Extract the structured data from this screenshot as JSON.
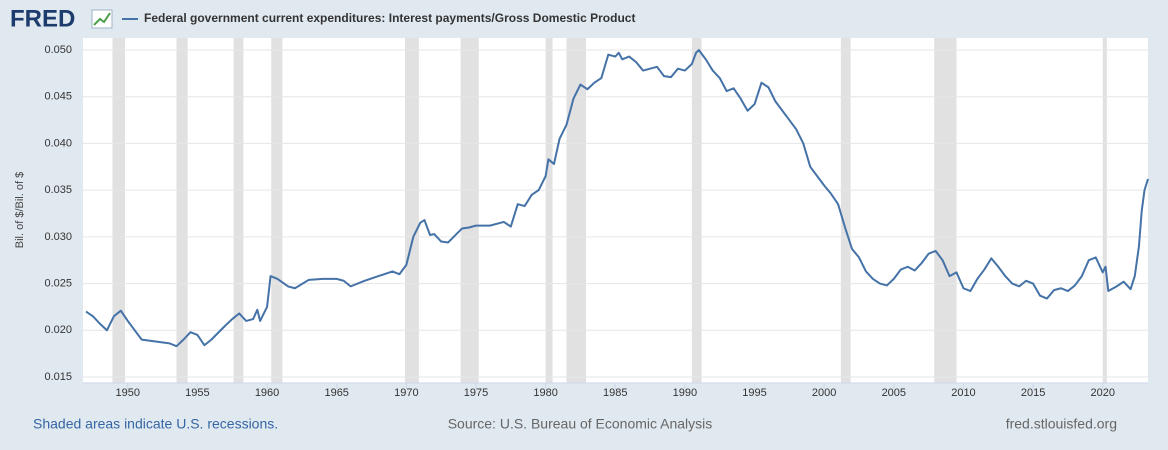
{
  "logo": "FRED",
  "chart_data": {
    "type": "line",
    "y_label": "Bil. of $/Bil. of $",
    "x": [
      1947,
      1947.5,
      1948,
      1948.5,
      1949,
      1949.5,
      1950,
      1950.5,
      1951,
      1952,
      1953,
      1953.5,
      1954,
      1954.5,
      1955,
      1955.5,
      1956,
      1957,
      1957.5,
      1958,
      1958.5,
      1959,
      1959.3,
      1959.5,
      1960,
      1960.25,
      1960.75,
      1961.5,
      1962,
      1963,
      1964,
      1965,
      1965.5,
      1966,
      1967,
      1968,
      1969,
      1969.5,
      1970,
      1970.5,
      1971,
      1971.3,
      1971.7,
      1972,
      1972.5,
      1973,
      1974,
      1974.5,
      1975,
      1976,
      1977,
      1977.5,
      1978,
      1978.5,
      1979,
      1979.5,
      1980,
      1980.2,
      1980.6,
      1981,
      1981.5,
      1982,
      1982.5,
      1983,
      1983.5,
      1984,
      1984.5,
      1985,
      1985.25,
      1985.5,
      1986,
      1986.5,
      1987,
      1988,
      1988.5,
      1989,
      1989.5,
      1990,
      1990.5,
      1990.8,
      1991,
      1991.5,
      1992,
      1992.5,
      1993,
      1993.5,
      1994,
      1994.5,
      1995,
      1995.5,
      1996,
      1996.5,
      1997,
      1997.5,
      1998,
      1998.5,
      1999,
      1999.5,
      2000,
      2000.5,
      2001,
      2001.5,
      2002,
      2002.5,
      2003,
      2003.5,
      2004,
      2004.5,
      2005,
      2005.5,
      2006,
      2006.5,
      2007,
      2007.5,
      2008,
      2008.5,
      2009,
      2009.5,
      2010,
      2010.5,
      2011,
      2011.5,
      2012,
      2012.5,
      2013,
      2013.5,
      2014,
      2014.5,
      2015,
      2015.5,
      2016,
      2016.5,
      2017,
      2017.5,
      2018,
      2018.5,
      2019,
      2019.5,
      2020,
      2020.2,
      2020.4,
      2021,
      2021.5,
      2022,
      2022.3,
      2022.6,
      2022.8,
      2023,
      2023.25
    ],
    "series": [
      {
        "name": "Federal government current expenditures: Interest payments/Gross Domestic Product",
        "color": "#4572a7",
        "values": [
          0.022,
          0.0215,
          0.0207,
          0.02,
          0.0215,
          0.0221,
          0.021,
          0.02,
          0.019,
          0.0188,
          0.0186,
          0.0183,
          0.019,
          0.0198,
          0.0195,
          0.0184,
          0.019,
          0.0205,
          0.0212,
          0.0218,
          0.021,
          0.0212,
          0.0222,
          0.021,
          0.0225,
          0.0258,
          0.0255,
          0.0247,
          0.0245,
          0.0254,
          0.0255,
          0.0255,
          0.0253,
          0.0247,
          0.0253,
          0.0258,
          0.0263,
          0.026,
          0.027,
          0.03,
          0.0315,
          0.0318,
          0.0302,
          0.0303,
          0.0295,
          0.0294,
          0.0309,
          0.031,
          0.0312,
          0.0312,
          0.0316,
          0.0311,
          0.0335,
          0.0333,
          0.0345,
          0.035,
          0.0365,
          0.0383,
          0.0378,
          0.0405,
          0.042,
          0.0448,
          0.0463,
          0.0458,
          0.0465,
          0.047,
          0.0495,
          0.0493,
          0.0497,
          0.049,
          0.0493,
          0.0487,
          0.0478,
          0.0482,
          0.0472,
          0.0471,
          0.048,
          0.0478,
          0.0485,
          0.0497,
          0.05,
          0.049,
          0.0478,
          0.047,
          0.0456,
          0.0459,
          0.0448,
          0.0435,
          0.0442,
          0.0465,
          0.046,
          0.0445,
          0.0435,
          0.0425,
          0.0415,
          0.04,
          0.0375,
          0.0365,
          0.0355,
          0.0346,
          0.0335,
          0.031,
          0.0287,
          0.0278,
          0.0263,
          0.0255,
          0.025,
          0.0248,
          0.0255,
          0.0265,
          0.0268,
          0.0264,
          0.0272,
          0.0282,
          0.0285,
          0.0275,
          0.0258,
          0.0262,
          0.0245,
          0.0242,
          0.0255,
          0.0265,
          0.0277,
          0.0268,
          0.0258,
          0.025,
          0.0247,
          0.0253,
          0.025,
          0.0237,
          0.0234,
          0.0243,
          0.0245,
          0.0242,
          0.0248,
          0.0258,
          0.0275,
          0.0278,
          0.0262,
          0.0268,
          0.0242,
          0.0247,
          0.0252,
          0.0244,
          0.0258,
          0.029,
          0.0328,
          0.035,
          0.0362
        ]
      }
    ],
    "recessions": [
      [
        1948.9,
        1949.8
      ],
      [
        1953.5,
        1954.3
      ],
      [
        1957.6,
        1958.3
      ],
      [
        1960.3,
        1961.1
      ],
      [
        1969.9,
        1970.9
      ],
      [
        1973.9,
        1975.2
      ],
      [
        1980.0,
        1980.5
      ],
      [
        1981.5,
        1982.9
      ],
      [
        1990.5,
        1991.2
      ],
      [
        2001.2,
        2001.9
      ],
      [
        2007.9,
        2009.5
      ],
      [
        2020.0,
        2020.3
      ]
    ],
    "xlim": [
      1947,
      2023.25
    ],
    "xticks": [
      1950,
      1955,
      1960,
      1965,
      1970,
      1975,
      1980,
      1985,
      1990,
      1995,
      2000,
      2005,
      2010,
      2015,
      2020
    ],
    "ylim": [
      0.015,
      0.05
    ],
    "yticks": [
      0.015,
      {
        "value": 0.02,
        "label": "0.020"
      },
      0.025,
      {
        "value": 0.03,
        "label": "0.030"
      },
      0.035,
      {
        "value": 0.04,
        "label": "0.040"
      },
      0.045,
      {
        "value": 0.05,
        "label": "0.050"
      }
    ],
    "grid": true,
    "recession_note": "Shaded areas indicate U.S. recessions.",
    "source": "Source: U.S. Bureau of Economic Analysis",
    "site": "fred.stlouisfed.org"
  }
}
